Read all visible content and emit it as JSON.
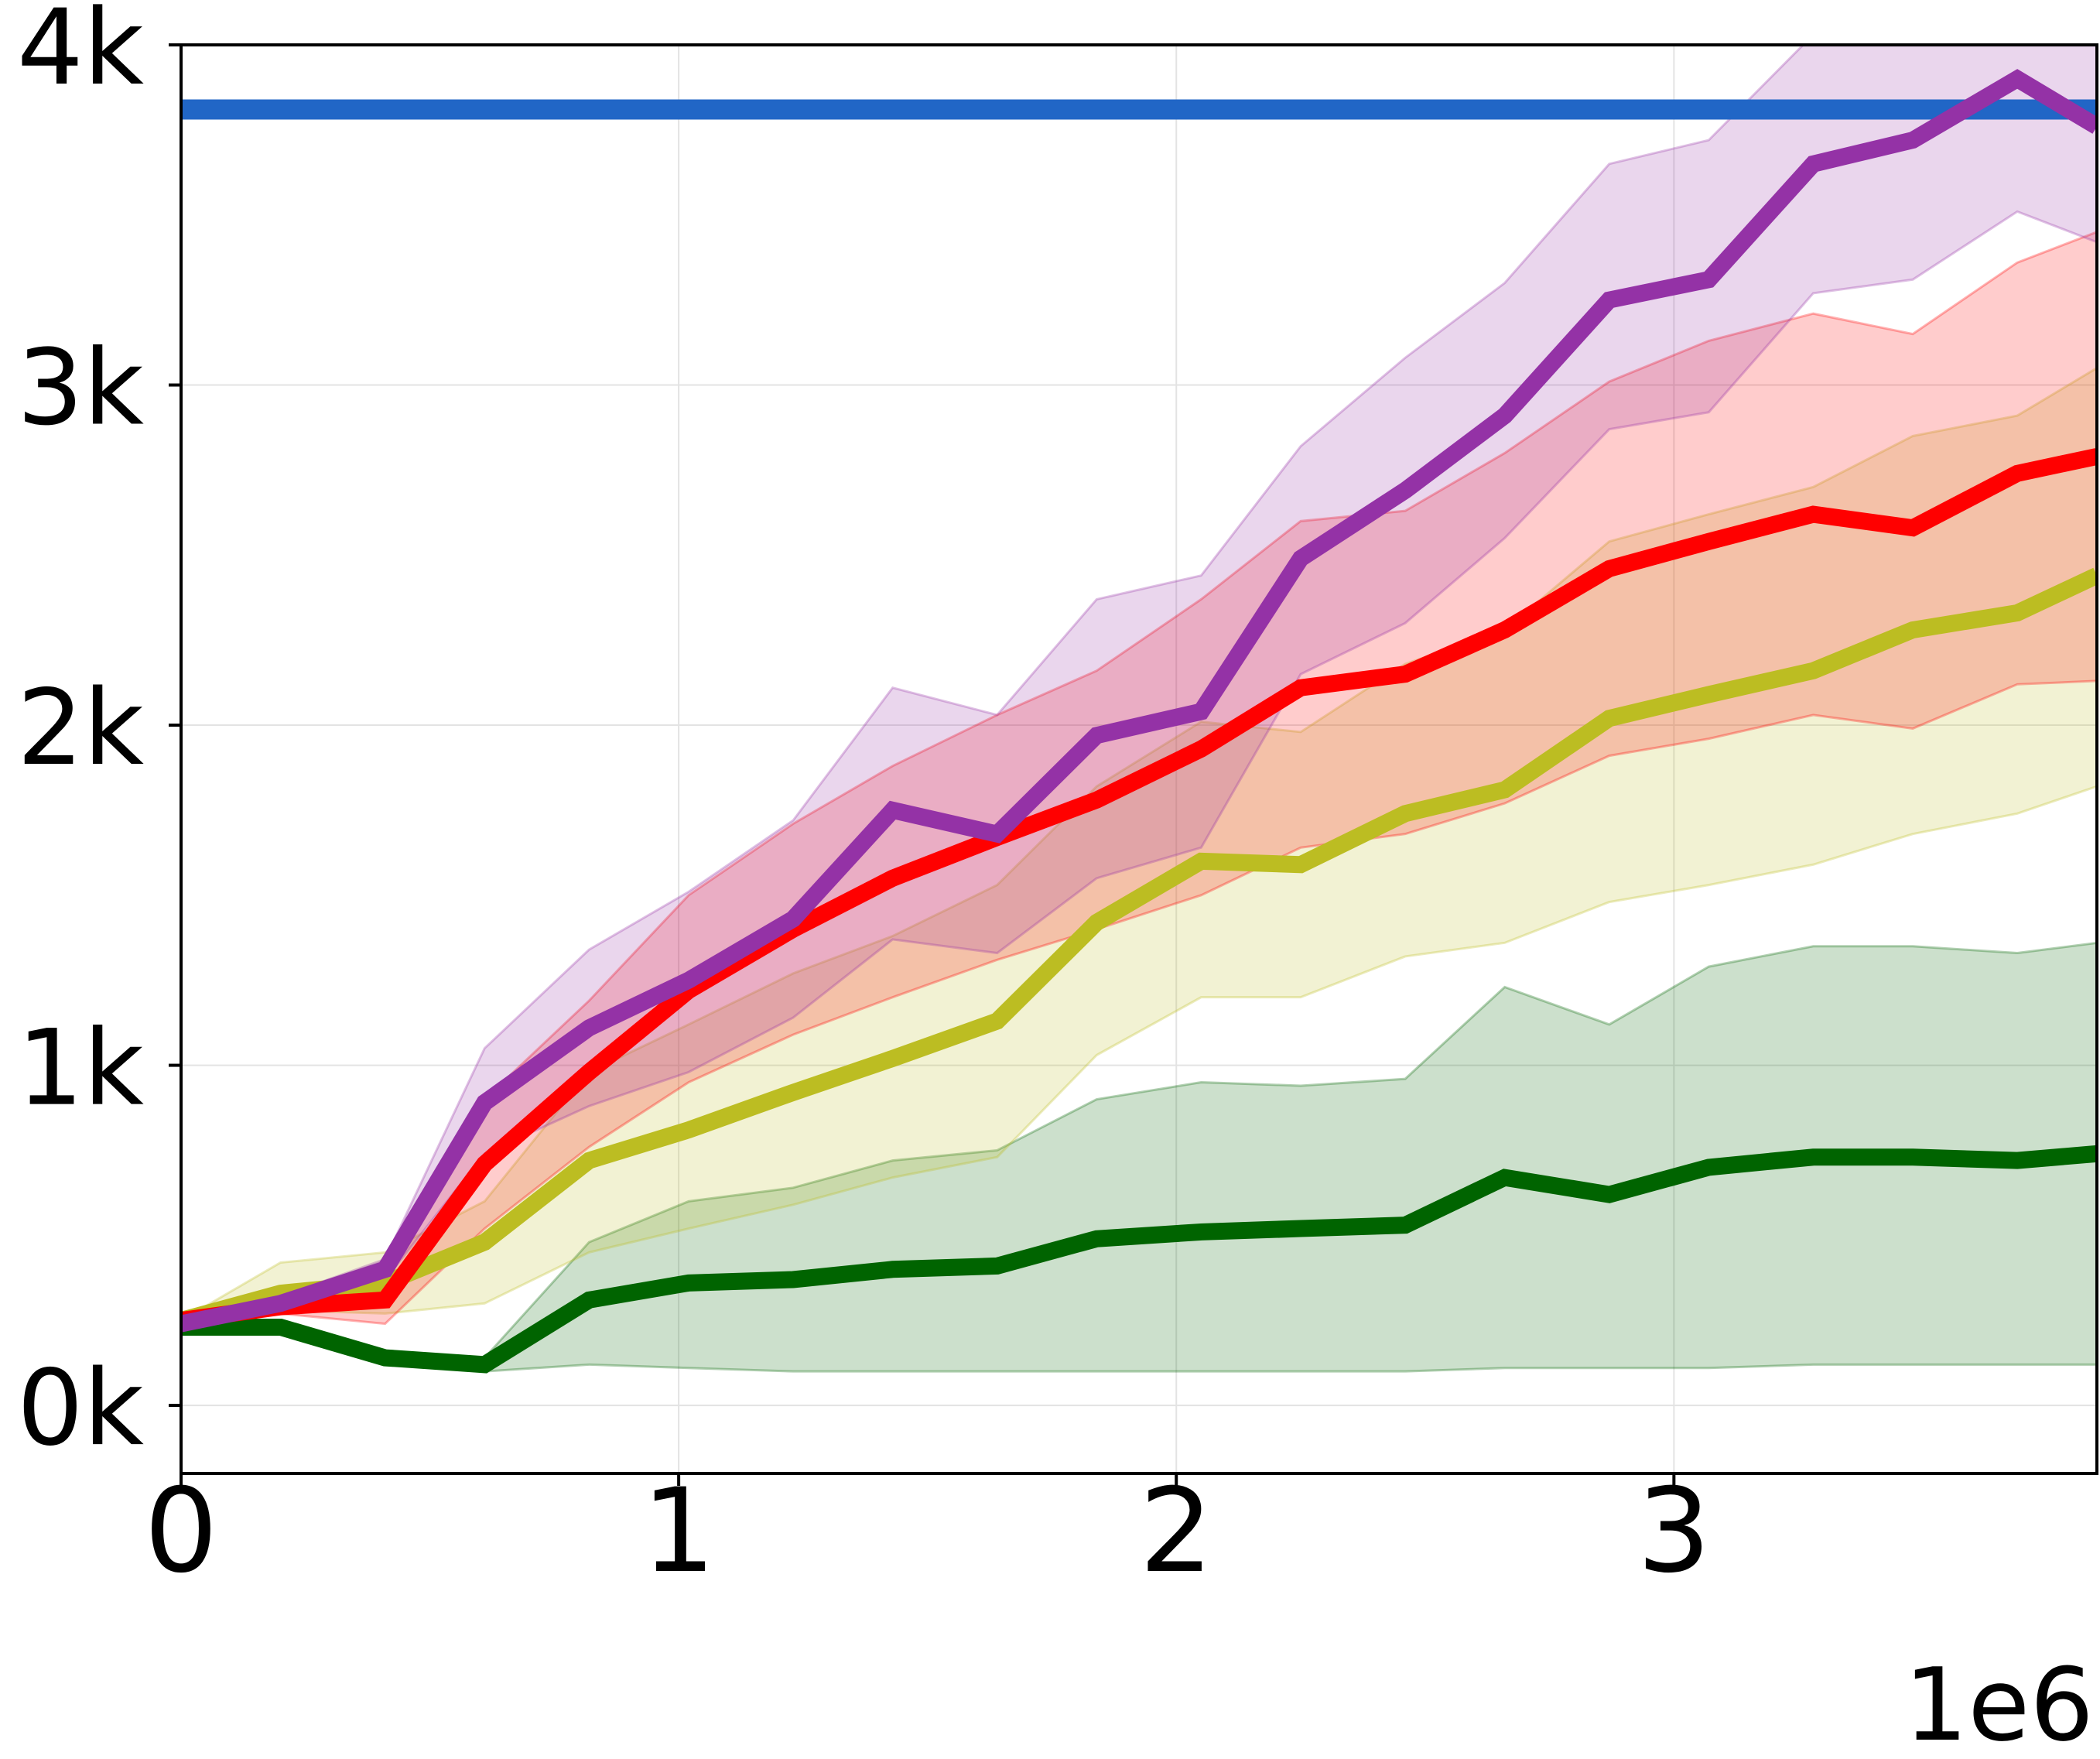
{
  "chart_data": {
    "type": "line",
    "title": "",
    "xlabel": "",
    "ylabel": "",
    "x_offset_label": "1e6",
    "xlim": [
      0,
      3.85
    ],
    "ylim": [
      -200,
      4000
    ],
    "x_ticks": [
      0,
      1,
      2,
      3
    ],
    "x_tick_labels": [
      "0",
      "1",
      "2",
      "3"
    ],
    "y_ticks": [
      0,
      1000,
      2000,
      3000,
      4000
    ],
    "y_tick_labels": [
      "0k",
      "1k",
      "2k",
      "3k",
      "4k"
    ],
    "grid": true,
    "x": [
      0,
      0.2,
      0.41,
      0.61,
      0.82,
      1.02,
      1.23,
      1.43,
      1.64,
      1.84,
      2.05,
      2.25,
      2.46,
      2.66,
      2.87,
      3.07,
      3.28,
      3.48,
      3.69,
      3.85
    ],
    "reference_line": {
      "y": 3810,
      "color": "#2166c6"
    },
    "series": [
      {
        "color": "#006400",
        "values": [
          230,
          230,
          140,
          120,
          310,
          360,
          370,
          400,
          410,
          490,
          510,
          520,
          530,
          670,
          620,
          700,
          730,
          730,
          720,
          740
        ],
        "lower": [
          230,
          230,
          140,
          100,
          120,
          110,
          100,
          100,
          100,
          100,
          100,
          100,
          100,
          110,
          110,
          110,
          120,
          120,
          120,
          120
        ],
        "upper": [
          230,
          230,
          140,
          140,
          480,
          600,
          640,
          720,
          750,
          900,
          950,
          940,
          960,
          1230,
          1120,
          1290,
          1350,
          1350,
          1330,
          1360
        ]
      },
      {
        "color": "#bcbd22",
        "values": [
          250,
          330,
          360,
          480,
          720,
          810,
          920,
          1020,
          1130,
          1420,
          1600,
          1590,
          1740,
          1810,
          2020,
          2090,
          2160,
          2280,
          2330,
          2440
        ],
        "lower": [
          250,
          280,
          270,
          300,
          450,
          520,
          590,
          670,
          730,
          1030,
          1200,
          1200,
          1320,
          1360,
          1480,
          1530,
          1590,
          1680,
          1740,
          1820
        ],
        "upper": [
          250,
          420,
          450,
          600,
          980,
          1120,
          1270,
          1380,
          1530,
          1820,
          2010,
          1980,
          2180,
          2280,
          2540,
          2620,
          2700,
          2850,
          2910,
          3050
        ]
      },
      {
        "color": "#ff0000",
        "values": [
          250,
          290,
          310,
          710,
          980,
          1220,
          1400,
          1550,
          1670,
          1780,
          1930,
          2110,
          2150,
          2280,
          2460,
          2540,
          2620,
          2580,
          2740,
          2790
        ],
        "lower": [
          250,
          270,
          240,
          520,
          760,
          950,
          1090,
          1200,
          1310,
          1400,
          1500,
          1640,
          1680,
          1770,
          1910,
          1960,
          2030,
          1990,
          2120,
          2130
        ],
        "upper": [
          250,
          320,
          390,
          900,
          1190,
          1500,
          1710,
          1880,
          2030,
          2160,
          2370,
          2600,
          2630,
          2800,
          3010,
          3130,
          3210,
          3150,
          3360,
          3450
        ]
      },
      {
        "color": "#9432a6",
        "values": [
          240,
          300,
          400,
          890,
          1110,
          1250,
          1430,
          1750,
          1680,
          1970,
          2040,
          2490,
          2690,
          2910,
          3250,
          3310,
          3650,
          3720,
          3900,
          3760
        ],
        "lower": [
          240,
          280,
          370,
          740,
          880,
          980,
          1140,
          1370,
          1330,
          1550,
          1640,
          2150,
          2300,
          2550,
          2870,
          2920,
          3270,
          3310,
          3510,
          3420
        ],
        "upper": [
          240,
          320,
          430,
          1050,
          1340,
          1510,
          1720,
          2110,
          2030,
          2370,
          2440,
          2820,
          3080,
          3300,
          3650,
          3720,
          4030,
          4120,
          4300,
          4100
        ]
      }
    ]
  }
}
